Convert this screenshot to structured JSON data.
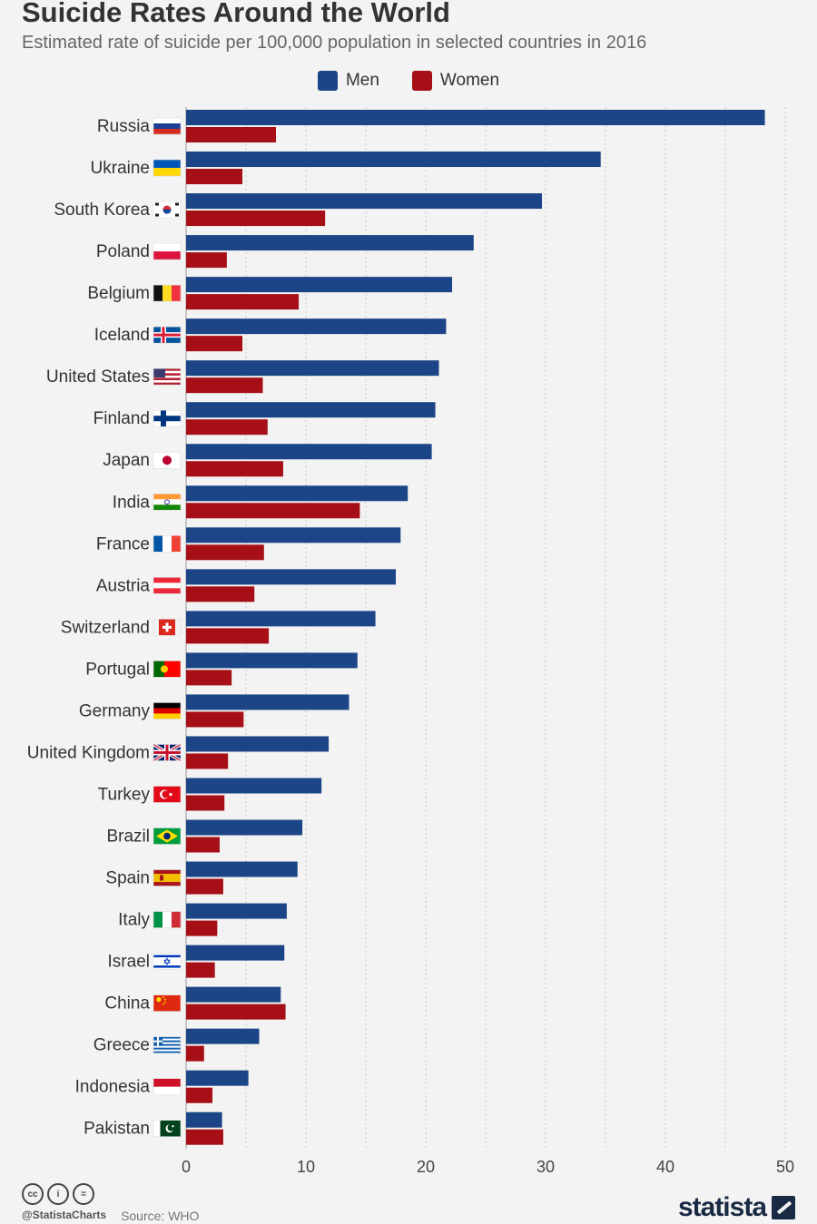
{
  "title": "Suicide Rates Around the World",
  "subtitle": "Estimated rate of suicide per 100,000 population in selected countries in 2016",
  "legend": [
    {
      "name": "Men",
      "color": "#1b4586"
    },
    {
      "name": "Women",
      "color": "#a50f15"
    }
  ],
  "footer": {
    "handle": "@StatistaCharts",
    "source": "Source: WHO",
    "logo": "statista",
    "cc_icons": [
      "creative-commons-icon",
      "attribution-icon",
      "no-derivatives-icon"
    ]
  },
  "chart_data": {
    "type": "bar",
    "orientation": "horizontal",
    "categories": [
      "Russia",
      "Ukraine",
      "South Korea",
      "Poland",
      "Belgium",
      "Iceland",
      "United States",
      "Finland",
      "Japan",
      "India",
      "France",
      "Austria",
      "Switzerland",
      "Portugal",
      "Germany",
      "United Kingdom",
      "Turkey",
      "Brazil",
      "Spain",
      "Italy",
      "Israel",
      "China",
      "Greece",
      "Indonesia",
      "Pakistan"
    ],
    "flags": [
      "russia-flag-icon",
      "ukraine-flag-icon",
      "south-korea-flag-icon",
      "poland-flag-icon",
      "belgium-flag-icon",
      "iceland-flag-icon",
      "united-states-flag-icon",
      "finland-flag-icon",
      "japan-flag-icon",
      "india-flag-icon",
      "france-flag-icon",
      "austria-flag-icon",
      "switzerland-flag-icon",
      "portugal-flag-icon",
      "germany-flag-icon",
      "united-kingdom-flag-icon",
      "turkey-flag-icon",
      "brazil-flag-icon",
      "spain-flag-icon",
      "italy-flag-icon",
      "israel-flag-icon",
      "china-flag-icon",
      "greece-flag-icon",
      "indonesia-flag-icon",
      "pakistan-flag-icon"
    ],
    "series": [
      {
        "name": "Men",
        "color": "#1b4586",
        "values": [
          48.3,
          34.6,
          29.7,
          24.0,
          22.2,
          21.7,
          21.1,
          20.8,
          20.5,
          18.5,
          17.9,
          17.5,
          15.8,
          14.3,
          13.6,
          11.9,
          11.3,
          9.7,
          9.3,
          8.4,
          8.2,
          7.9,
          6.1,
          5.2,
          3.0
        ]
      },
      {
        "name": "Women",
        "color": "#a50f15",
        "values": [
          7.5,
          4.7,
          11.6,
          3.4,
          9.4,
          4.7,
          6.4,
          6.8,
          8.1,
          14.5,
          6.5,
          5.7,
          6.9,
          3.8,
          4.8,
          3.5,
          3.2,
          2.8,
          3.1,
          2.6,
          2.4,
          8.3,
          1.5,
          2.2,
          3.1
        ]
      }
    ],
    "xlim": [
      0,
      50
    ],
    "xticks": [
      0,
      10,
      20,
      30,
      40,
      50
    ],
    "grid": true,
    "legend_position": "top-center"
  }
}
